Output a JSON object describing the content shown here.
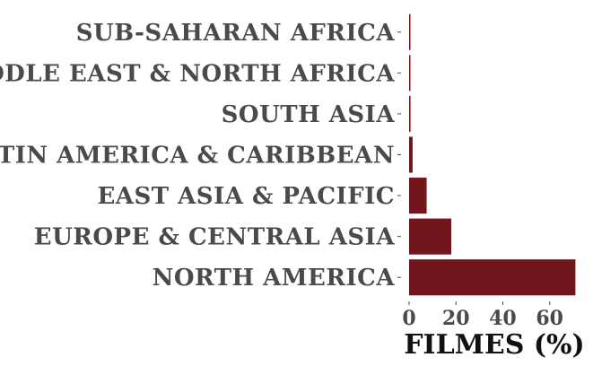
{
  "chart_data": {
    "type": "bar",
    "orientation": "horizontal",
    "categories": [
      "SUB-SAHARAN AFRICA",
      "MIDDLE EAST & NORTH AFRICA",
      "SOUTH ASIA",
      "LATIN AMERICA & CARIBBEAN",
      "EAST ASIA & PACIFIC",
      "EUROPE & CENTRAL ASIA",
      "NORTH AMERICA"
    ],
    "values": [
      0.2,
      0.3,
      0.6,
      1.5,
      7.5,
      18,
      71
    ],
    "xlabel": "FILMES (%)",
    "ylabel": "",
    "title": "",
    "xlim": [
      0,
      72
    ],
    "xticks": [
      0,
      20,
      40,
      60
    ],
    "xtick_labels": [
      "0",
      "20",
      "40",
      "60"
    ],
    "grid": false,
    "bar_color": "#73151c"
  }
}
